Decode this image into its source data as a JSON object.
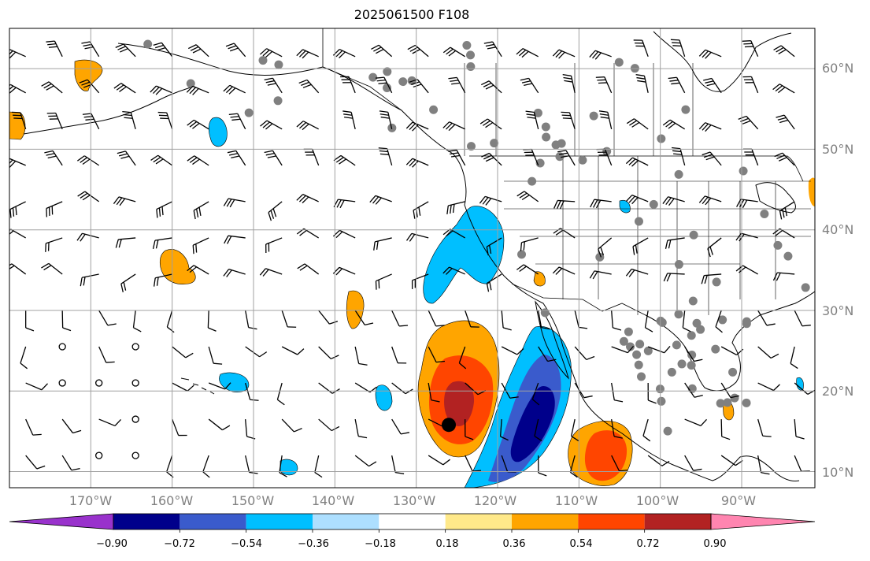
{
  "title": "2025061500 F108",
  "map": {
    "projection": "plate-carree",
    "lon_range": [
      -180,
      -81
    ],
    "lat_range": [
      8,
      65
    ],
    "gridlines": true,
    "coastlines": true,
    "borders": true,
    "lat_labels": [
      "60°N",
      "50°N",
      "40°N",
      "30°N",
      "20°N",
      "10°N"
    ],
    "lon_labels": [
      "170°W",
      "160°W",
      "150°W",
      "140°W",
      "130°W",
      "120°W",
      "110°W",
      "100°W",
      "90°W"
    ],
    "highlight_marker": {
      "lon": -126,
      "lat": 15.8,
      "color": "#000000"
    }
  },
  "colorbar": {
    "ticks": [
      "−0.90",
      "−0.72",
      "−0.54",
      "−0.36",
      "−0.18",
      "0.18",
      "0.36",
      "0.54",
      "0.72",
      "0.90"
    ],
    "colors": [
      "#9932CC",
      "#00008B",
      "#3A5BCC",
      "#00BFFF",
      "#ADDFFF",
      "#FFFFFF",
      "#FFE98A",
      "#FFA500",
      "#FF4500",
      "#B22222",
      "#FF85B0"
    ],
    "extend": "both"
  }
}
